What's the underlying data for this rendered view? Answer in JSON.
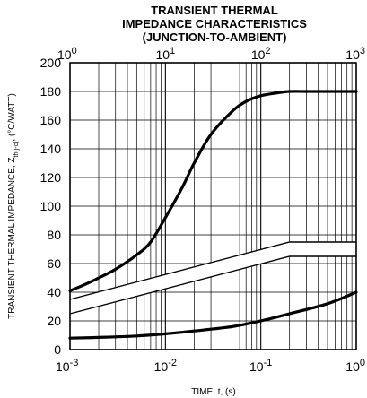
{
  "chart_data": {
    "type": "line",
    "title_lines": [
      "TRANSIENT THERMAL",
      "IMPEDANCE CHARACTERISTICS",
      "(JUNCTION-TO-AMBIENT)"
    ],
    "xlabel": "TIME, t, (s)",
    "ylabel": "TRANSIENT THERMAL IMPEDANCE, Zth(j-c), (°C/WATT)",
    "ylabel_main": "TRANSIENT THERMAL IMPEDANCE, Z",
    "ylabel_sub": "th(j-c)",
    "ylabel_tail": ", (°C/WATT)",
    "x_scale": "log",
    "xlim": [
      0.001,
      1
    ],
    "ylim": [
      0,
      200
    ],
    "grid": true,
    "bottom_axis_ticks": [
      {
        "base": "10",
        "exp": "-3"
      },
      {
        "base": "10",
        "exp": "-2"
      },
      {
        "base": "10",
        "exp": "-1"
      },
      {
        "base": "10",
        "exp": "0"
      }
    ],
    "top_axis_ticks": [
      {
        "base": "10",
        "exp": "0"
      },
      {
        "base": "10",
        "exp": "1"
      },
      {
        "base": "10",
        "exp": "2"
      },
      {
        "base": "10",
        "exp": "3"
      }
    ],
    "y_ticks": [
      "0",
      "20",
      "40",
      "60",
      "80",
      "100",
      "120",
      "140",
      "160",
      "180",
      "200"
    ],
    "series": [
      {
        "axis": "top",
        "top_axis_range": [
          1,
          1000
        ],
        "x": [
          1,
          1.5,
          2,
          3,
          5,
          7,
          10,
          15,
          20,
          30,
          50,
          70,
          100,
          150,
          200,
          300,
          500,
          1000
        ],
        "y": [
          41,
          46,
          50,
          56,
          66,
          75,
          92,
          113,
          130,
          150,
          166,
          173,
          177,
          179,
          180,
          180,
          180,
          180
        ]
      },
      {
        "axis": "bottom",
        "x": [
          0.001,
          0.002,
          0.005,
          0.01,
          0.02,
          0.05,
          0.1,
          0.2,
          0.5,
          1
        ],
        "y": [
          8,
          8.5,
          9.5,
          11,
          13,
          16,
          20,
          25,
          32,
          40
        ]
      }
    ],
    "band": {
      "axis": "bottom",
      "x": [
        0.001,
        0.2,
        1
      ],
      "upper": [
        35,
        75,
        75
      ],
      "lower": [
        25,
        65,
        65
      ]
    }
  }
}
